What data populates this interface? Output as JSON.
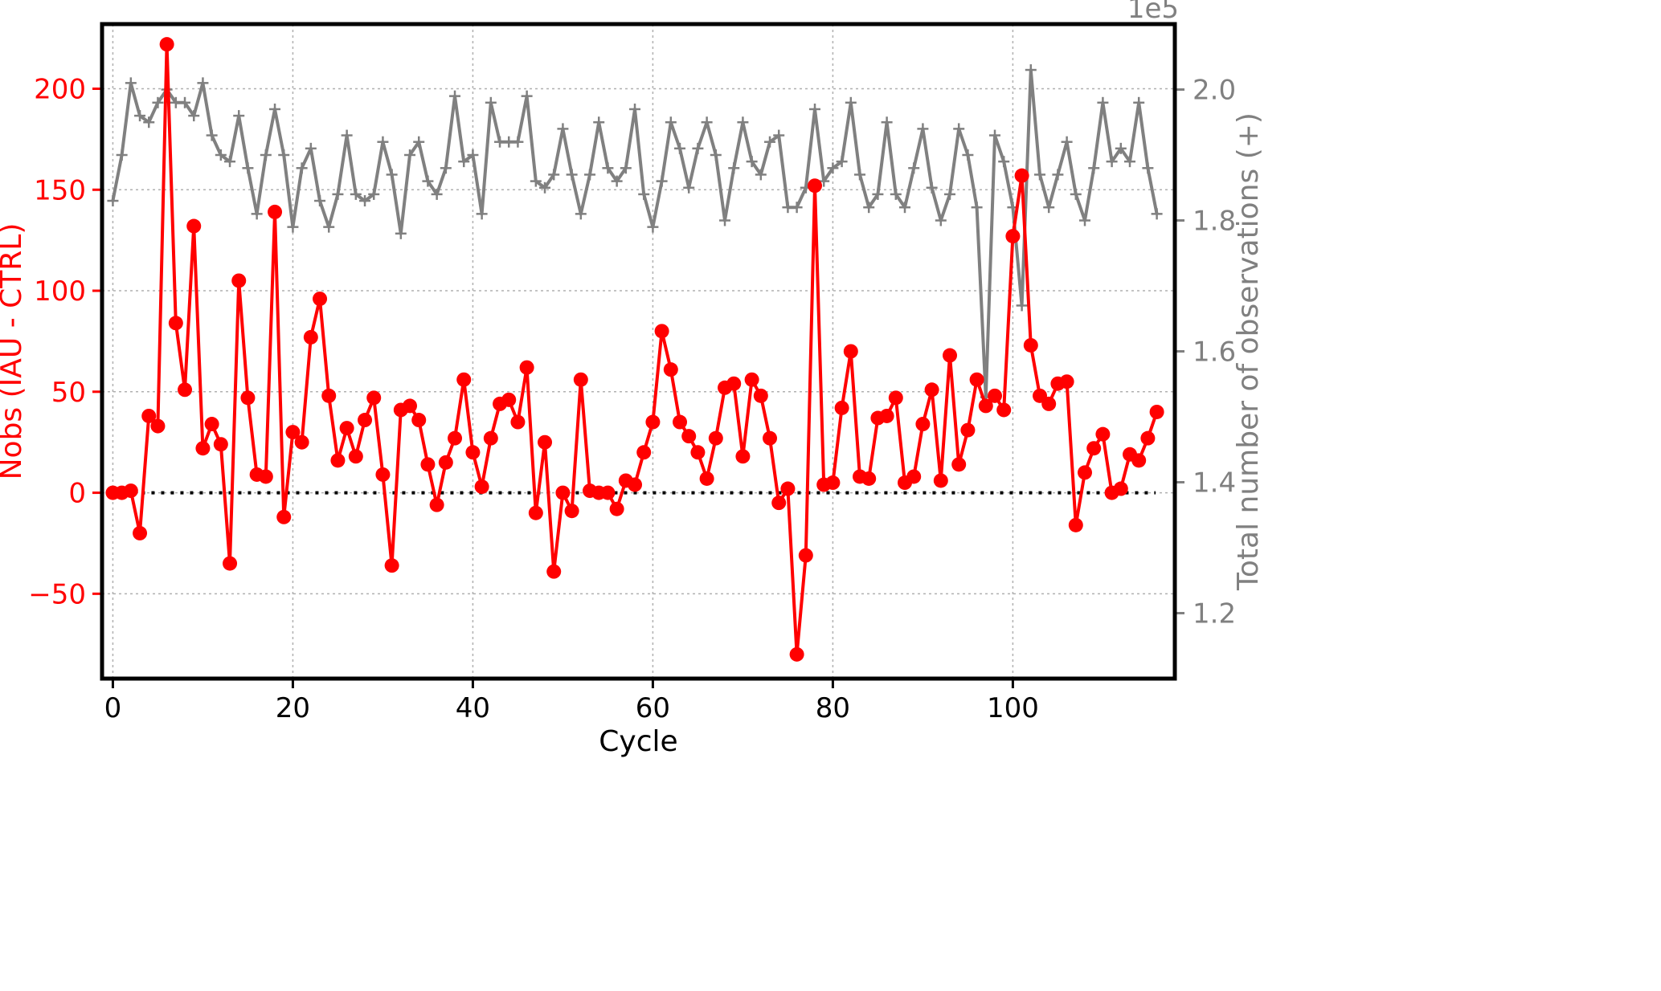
{
  "chart_data": {
    "type": "line",
    "xlabel": "Cycle",
    "ylabel_left": "Nobs (IAU - CTRL)",
    "ylabel_right": "Total number of observations (+)",
    "right_axis_multiplier": "1e5",
    "xlim": [
      -1.2,
      118
    ],
    "ylim_left": [
      -92,
      232
    ],
    "ylim_right": [
      1.1,
      2.1
    ],
    "xticks": [
      0,
      20,
      40,
      60,
      80,
      100
    ],
    "yticks_left": [
      -50,
      0,
      50,
      100,
      150,
      200
    ],
    "yticks_right": [
      1.2,
      1.4,
      1.6,
      1.8,
      2.0
    ],
    "yticks_left_labels": [
      "−50",
      "0",
      "50",
      "100",
      "150",
      "200"
    ],
    "yticks_right_labels": [
      "1.2",
      "1.4",
      "1.6",
      "1.8",
      "2.0"
    ],
    "grid": true,
    "zero_line": 0,
    "colors": {
      "difference": "#ff0000",
      "total": "#808080",
      "zero_line": "#000000",
      "grid": "#b0b0b0"
    },
    "series": [
      {
        "axis": "left",
        "marker": "circle",
        "x": [
          0,
          1,
          2,
          3,
          4,
          5,
          6,
          7,
          8,
          9,
          10,
          11,
          12,
          13,
          14,
          15,
          16,
          17,
          18,
          19,
          20,
          21,
          22,
          23,
          24,
          25,
          26,
          27,
          28,
          29,
          30,
          31,
          32,
          33,
          34,
          35,
          36,
          37,
          38,
          39,
          40,
          41,
          42,
          43,
          44,
          45,
          46,
          47,
          48,
          49,
          50,
          51,
          52,
          53,
          54,
          55,
          56,
          57,
          58,
          59,
          60,
          61,
          62,
          63,
          64,
          65,
          66,
          67,
          68,
          69,
          70,
          71,
          72,
          73,
          74,
          75,
          76,
          77,
          78,
          79,
          80,
          81,
          82,
          83,
          84,
          85,
          86,
          87,
          88,
          89,
          90,
          91,
          92,
          93,
          94,
          95,
          96,
          97,
          98,
          99,
          100,
          101,
          102,
          103,
          104,
          105,
          106,
          107,
          108,
          109,
          110,
          111,
          112,
          113,
          114,
          115,
          116
        ],
        "values": [
          0,
          0,
          1,
          -20,
          38,
          33,
          222,
          84,
          51,
          132,
          22,
          34,
          24,
          -35,
          105,
          47,
          9,
          8,
          139,
          -12,
          30,
          25,
          77,
          96,
          48,
          16,
          32,
          18,
          36,
          47,
          9,
          -36,
          41,
          43,
          36,
          14,
          -6,
          15,
          27,
          56,
          20,
          3,
          27,
          44,
          46,
          35,
          62,
          -10,
          25,
          -39,
          0,
          -9,
          56,
          1,
          0,
          0,
          -8,
          6,
          4,
          20,
          35,
          80,
          61,
          35,
          28,
          20,
          7,
          27,
          52,
          54,
          18,
          56,
          48,
          27,
          -5,
          2,
          -80,
          -31,
          152,
          4,
          5,
          42,
          70,
          8,
          7,
          37,
          38,
          47,
          5,
          8,
          34,
          51,
          6,
          68,
          14,
          31,
          56,
          43,
          48,
          41,
          127,
          157,
          73,
          48,
          44,
          54,
          55,
          -16,
          10,
          22,
          29,
          0,
          2,
          19,
          16,
          27,
          40
        ]
      },
      {
        "axis": "right",
        "marker": "plus",
        "x": [
          0,
          1,
          2,
          3,
          4,
          5,
          6,
          7,
          8,
          9,
          10,
          11,
          12,
          13,
          14,
          15,
          16,
          17,
          18,
          19,
          20,
          21,
          22,
          23,
          24,
          25,
          26,
          27,
          28,
          29,
          30,
          31,
          32,
          33,
          34,
          35,
          36,
          37,
          38,
          39,
          40,
          41,
          42,
          43,
          44,
          45,
          46,
          47,
          48,
          49,
          50,
          51,
          52,
          53,
          54,
          55,
          56,
          57,
          58,
          59,
          60,
          61,
          62,
          63,
          64,
          65,
          66,
          67,
          68,
          69,
          70,
          71,
          72,
          73,
          74,
          75,
          76,
          77,
          78,
          79,
          80,
          81,
          82,
          83,
          84,
          85,
          86,
          87,
          88,
          89,
          90,
          91,
          92,
          93,
          94,
          95,
          96,
          97,
          98,
          99,
          100,
          101,
          102,
          103,
          104,
          105,
          106,
          107,
          108,
          109,
          110,
          111,
          112,
          113,
          114,
          115,
          116
        ],
        "values": [
          1.83,
          1.9,
          2.01,
          1.96,
          1.95,
          1.98,
          2.0,
          1.98,
          1.98,
          1.96,
          2.01,
          1.93,
          1.9,
          1.89,
          1.96,
          1.88,
          1.81,
          1.9,
          1.97,
          1.9,
          1.79,
          1.88,
          1.91,
          1.83,
          1.79,
          1.84,
          1.93,
          1.84,
          1.83,
          1.84,
          1.92,
          1.87,
          1.78,
          1.9,
          1.92,
          1.86,
          1.84,
          1.88,
          1.99,
          1.89,
          1.9,
          1.81,
          1.98,
          1.92,
          1.92,
          1.92,
          1.99,
          1.86,
          1.85,
          1.87,
          1.94,
          1.87,
          1.81,
          1.87,
          1.95,
          1.88,
          1.86,
          1.88,
          1.97,
          1.84,
          1.79,
          1.86,
          1.95,
          1.91,
          1.85,
          1.91,
          1.95,
          1.9,
          1.8,
          1.88,
          1.95,
          1.89,
          1.87,
          1.92,
          1.93,
          1.82,
          1.82,
          1.85,
          1.97,
          1.86,
          1.88,
          1.89,
          1.98,
          1.87,
          1.82,
          1.84,
          1.95,
          1.84,
          1.82,
          1.88,
          1.94,
          1.85,
          1.8,
          1.84,
          1.94,
          1.9,
          1.82,
          1.53,
          1.93,
          1.89,
          1.82,
          1.67,
          2.03,
          1.87,
          1.82,
          1.87,
          1.92,
          1.84,
          1.8,
          1.88,
          1.98,
          1.89,
          1.91,
          1.89,
          1.98,
          1.88,
          1.81
        ]
      }
    ]
  }
}
